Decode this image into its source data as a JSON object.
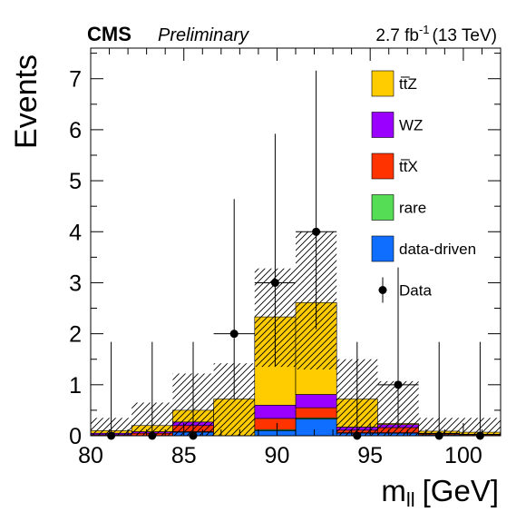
{
  "header": {
    "experiment": "CMS",
    "status": "Preliminary",
    "lumi_value": "2.7 fb",
    "lumi_exp": "-1",
    "lumi_energy": "(13 TeV)"
  },
  "chart_data": {
    "type": "bar",
    "stacked": true,
    "xlabel": "m",
    "xlabel_sub": "ll",
    "xlabel_unit": "[GeV]",
    "ylabel": "Events",
    "xlim": [
      80,
      102
    ],
    "ylim": [
      0,
      7.6
    ],
    "xticks": [
      80,
      85,
      90,
      95,
      100
    ],
    "yticks": [
      0,
      1,
      2,
      3,
      4,
      5,
      6,
      7
    ],
    "bin_edges": [
      80.0,
      82.2,
      84.4,
      86.6,
      88.8,
      91.0,
      93.2,
      95.4,
      97.6,
      99.8,
      102.0
    ],
    "series": [
      {
        "name": "data-driven",
        "color": "#0f6dff",
        "values": [
          0.0,
          0.0,
          0.07,
          0.0,
          0.1,
          0.33,
          0.05,
          0.05,
          0.02,
          0.0
        ]
      },
      {
        "name": "rare",
        "color": "#55dd55",
        "values": [
          0.0,
          0.0,
          0.01,
          0.0,
          0.02,
          0.02,
          0.01,
          0.01,
          0.0,
          0.0
        ]
      },
      {
        "name": "tt̅X",
        "color": "#ff3300",
        "values": [
          0.02,
          0.05,
          0.12,
          0.0,
          0.22,
          0.2,
          0.05,
          0.1,
          0.02,
          0.02
        ]
      },
      {
        "name": "WZ",
        "color": "#9900ff",
        "values": [
          0.03,
          0.03,
          0.07,
          0.0,
          0.26,
          0.26,
          0.06,
          0.06,
          0.01,
          0.01
        ]
      },
      {
        "name": "tt̅Z",
        "color": "#ffcc00",
        "values": [
          0.05,
          0.12,
          0.23,
          0.72,
          1.73,
          1.8,
          0.55,
          0.02,
          0.04,
          0.04
        ]
      }
    ],
    "uncertainty_band": {
      "low": [
        0.0,
        0.0,
        0.0,
        0.0,
        1.35,
        1.3,
        0.0,
        0.0,
        0.0,
        0.0
      ],
      "high": [
        0.35,
        0.65,
        1.22,
        1.42,
        3.28,
        4.0,
        1.5,
        1.07,
        0.35,
        0.35
      ]
    },
    "data": {
      "name": "Data",
      "x": [
        81.1,
        83.3,
        85.5,
        87.7,
        89.9,
        92.1,
        94.3,
        96.5,
        98.7,
        100.9
      ],
      "y": [
        0,
        0,
        0,
        2,
        3,
        4,
        0,
        1,
        0,
        0
      ],
      "err_low": [
        0.0,
        0.0,
        0.0,
        1.29,
        1.63,
        1.91,
        0.0,
        0.83,
        0.0,
        0.0
      ],
      "err_high": [
        1.84,
        1.84,
        1.84,
        2.64,
        2.92,
        3.16,
        1.84,
        2.3,
        1.84,
        1.84
      ]
    },
    "legend": {
      "placement": "top-right",
      "entries": [
        "tt̅Z",
        "WZ",
        "tt̅X",
        "rare",
        "data-driven",
        "Data"
      ]
    }
  }
}
